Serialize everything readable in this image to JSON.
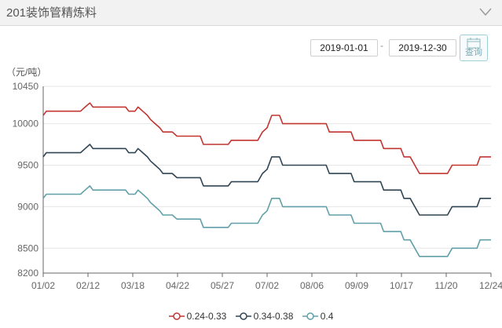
{
  "header": {
    "title": "201装饰管精炼料"
  },
  "filter": {
    "start_date": "2019-01-01",
    "end_date": "2019-12-30",
    "separator": "-",
    "query_label": "查询"
  },
  "colors": {
    "s1": "#c23531",
    "s2": "#2f4554",
    "s3": "#61a0a8",
    "axis": "#666666",
    "grid": "#e6e6e6"
  },
  "icons": {
    "collapse": "chevron-down-icon",
    "query": "calendar-icon"
  },
  "chart_data": {
    "type": "line",
    "unit_label": "（元/吨）",
    "ylim": [
      8200,
      10450
    ],
    "yticks": [
      8200,
      8500,
      9000,
      9500,
      10000,
      10450
    ],
    "xticks": [
      "01/02",
      "02/12",
      "03/18",
      "04/22",
      "05/27",
      "07/02",
      "08/06",
      "09/09",
      "10/17",
      "11/20",
      "12/24"
    ],
    "grid": "horizontal",
    "legend_position": "bottom",
    "series": [
      {
        "name": "0.24-0.33",
        "color": "#c23531",
        "values": [
          [
            0,
            10100
          ],
          [
            2,
            10150
          ],
          [
            24,
            10150
          ],
          [
            27,
            10200
          ],
          [
            30,
            10250
          ],
          [
            32,
            10200
          ],
          [
            53,
            10200
          ],
          [
            55,
            10150
          ],
          [
            59,
            10150
          ],
          [
            61,
            10200
          ],
          [
            64,
            10150
          ],
          [
            67,
            10100
          ],
          [
            69,
            10050
          ],
          [
            72,
            10000
          ],
          [
            75,
            9950
          ],
          [
            77,
            9900
          ],
          [
            83,
            9900
          ],
          [
            86,
            9850
          ],
          [
            101,
            9850
          ],
          [
            103,
            9750
          ],
          [
            119,
            9750
          ],
          [
            121,
            9800
          ],
          [
            138,
            9800
          ],
          [
            141,
            9900
          ],
          [
            144,
            9950
          ],
          [
            147,
            10100
          ],
          [
            152,
            10100
          ],
          [
            154,
            10000
          ],
          [
            182,
            10000
          ],
          [
            184,
            9900
          ],
          [
            198,
            9900
          ],
          [
            200,
            9800
          ],
          [
            217,
            9800
          ],
          [
            219,
            9700
          ],
          [
            230,
            9700
          ],
          [
            232,
            9600
          ],
          [
            236,
            9600
          ],
          [
            239,
            9500
          ],
          [
            242,
            9400
          ],
          [
            260,
            9400
          ],
          [
            263,
            9500
          ],
          [
            279,
            9500
          ],
          [
            281,
            9600
          ],
          [
            288,
            9600
          ]
        ]
      },
      {
        "name": "0.34-0.38",
        "color": "#2f4554",
        "values": [
          [
            0,
            9600
          ],
          [
            2,
            9650
          ],
          [
            24,
            9650
          ],
          [
            27,
            9700
          ],
          [
            30,
            9750
          ],
          [
            32,
            9700
          ],
          [
            53,
            9700
          ],
          [
            55,
            9650
          ],
          [
            59,
            9650
          ],
          [
            61,
            9700
          ],
          [
            64,
            9650
          ],
          [
            67,
            9600
          ],
          [
            69,
            9550
          ],
          [
            72,
            9500
          ],
          [
            75,
            9450
          ],
          [
            77,
            9400
          ],
          [
            83,
            9400
          ],
          [
            86,
            9350
          ],
          [
            101,
            9350
          ],
          [
            103,
            9250
          ],
          [
            119,
            9250
          ],
          [
            121,
            9300
          ],
          [
            138,
            9300
          ],
          [
            141,
            9400
          ],
          [
            144,
            9450
          ],
          [
            147,
            9600
          ],
          [
            152,
            9600
          ],
          [
            154,
            9500
          ],
          [
            182,
            9500
          ],
          [
            184,
            9400
          ],
          [
            198,
            9400
          ],
          [
            200,
            9300
          ],
          [
            217,
            9300
          ],
          [
            219,
            9200
          ],
          [
            230,
            9200
          ],
          [
            232,
            9100
          ],
          [
            236,
            9100
          ],
          [
            239,
            9000
          ],
          [
            242,
            8900
          ],
          [
            260,
            8900
          ],
          [
            263,
            9000
          ],
          [
            279,
            9000
          ],
          [
            281,
            9100
          ],
          [
            288,
            9100
          ]
        ]
      },
      {
        "name": "0.4",
        "color": "#61a0a8",
        "values": [
          [
            0,
            9100
          ],
          [
            2,
            9150
          ],
          [
            24,
            9150
          ],
          [
            27,
            9200
          ],
          [
            30,
            9250
          ],
          [
            32,
            9200
          ],
          [
            53,
            9200
          ],
          [
            55,
            9150
          ],
          [
            59,
            9150
          ],
          [
            61,
            9200
          ],
          [
            64,
            9150
          ],
          [
            67,
            9100
          ],
          [
            69,
            9050
          ],
          [
            72,
            9000
          ],
          [
            75,
            8950
          ],
          [
            77,
            8900
          ],
          [
            83,
            8900
          ],
          [
            86,
            8850
          ],
          [
            101,
            8850
          ],
          [
            103,
            8750
          ],
          [
            119,
            8750
          ],
          [
            121,
            8800
          ],
          [
            138,
            8800
          ],
          [
            141,
            8900
          ],
          [
            144,
            8950
          ],
          [
            147,
            9100
          ],
          [
            152,
            9100
          ],
          [
            154,
            9000
          ],
          [
            182,
            9000
          ],
          [
            184,
            8900
          ],
          [
            198,
            8900
          ],
          [
            200,
            8800
          ],
          [
            217,
            8800
          ],
          [
            219,
            8700
          ],
          [
            230,
            8700
          ],
          [
            232,
            8600
          ],
          [
            236,
            8600
          ],
          [
            239,
            8500
          ],
          [
            242,
            8400
          ],
          [
            260,
            8400
          ],
          [
            263,
            8500
          ],
          [
            279,
            8500
          ],
          [
            281,
            8600
          ],
          [
            288,
            8600
          ]
        ]
      }
    ]
  }
}
